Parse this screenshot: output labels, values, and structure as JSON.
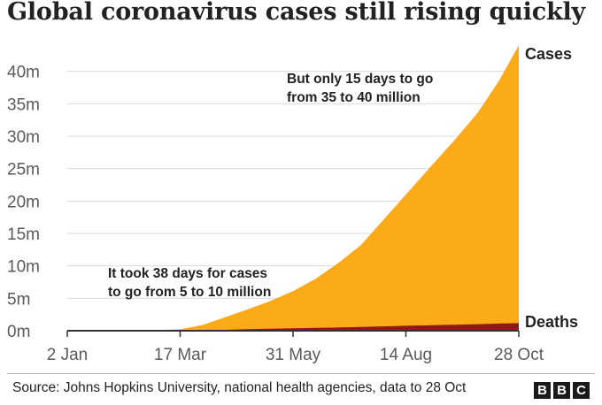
{
  "chart_data": {
    "type": "area",
    "title": "Global coronavirus cases still rising quickly",
    "xlabel": "",
    "ylabel": "",
    "x_ticks": [
      "2 Jan",
      "17 Mar",
      "31 May",
      "14 Aug",
      "28 Oct"
    ],
    "xlim": [
      "2020-01-02",
      "2020-10-28"
    ],
    "y_ticks": [
      "0m",
      "5m",
      "10m",
      "15m",
      "20m",
      "25m",
      "30m",
      "35m",
      "40m"
    ],
    "ylim": [
      0,
      45
    ],
    "y_unit": "millions",
    "grid": "horizontal",
    "x": [
      "2020-01-02",
      "2020-01-22",
      "2020-02-15",
      "2020-03-01",
      "2020-03-17",
      "2020-04-01",
      "2020-04-15",
      "2020-05-01",
      "2020-05-15",
      "2020-05-31",
      "2020-06-15",
      "2020-07-01",
      "2020-07-15",
      "2020-08-01",
      "2020-08-14",
      "2020-09-01",
      "2020-09-15",
      "2020-10-01",
      "2020-10-15",
      "2020-10-28"
    ],
    "series": [
      {
        "name": "Cases",
        "color": "#fbab18",
        "values": [
          0,
          0.01,
          0.07,
          0.09,
          0.2,
          0.9,
          2.0,
          3.3,
          4.5,
          6.1,
          8.0,
          10.6,
          13.2,
          17.6,
          21.0,
          25.7,
          29.3,
          33.7,
          38.6,
          44.0
        ]
      },
      {
        "name": "Deaths",
        "color": "#8b1a1a",
        "values": [
          0,
          0,
          0.001,
          0.003,
          0.007,
          0.05,
          0.13,
          0.23,
          0.3,
          0.37,
          0.43,
          0.51,
          0.58,
          0.68,
          0.76,
          0.86,
          0.93,
          1.01,
          1.1,
          1.17
        ]
      }
    ],
    "annotations": [
      {
        "text": [
          "It took 38 days for cases",
          "to go from 5 to 10 million"
        ]
      },
      {
        "text": [
          "But only 15 days to go",
          "from 35 to 40 million"
        ]
      }
    ]
  },
  "footer": {
    "source": "Source: Johns Hopkins University, national health agencies, data to 28 Oct",
    "logo_letters": [
      "B",
      "B",
      "C"
    ]
  }
}
